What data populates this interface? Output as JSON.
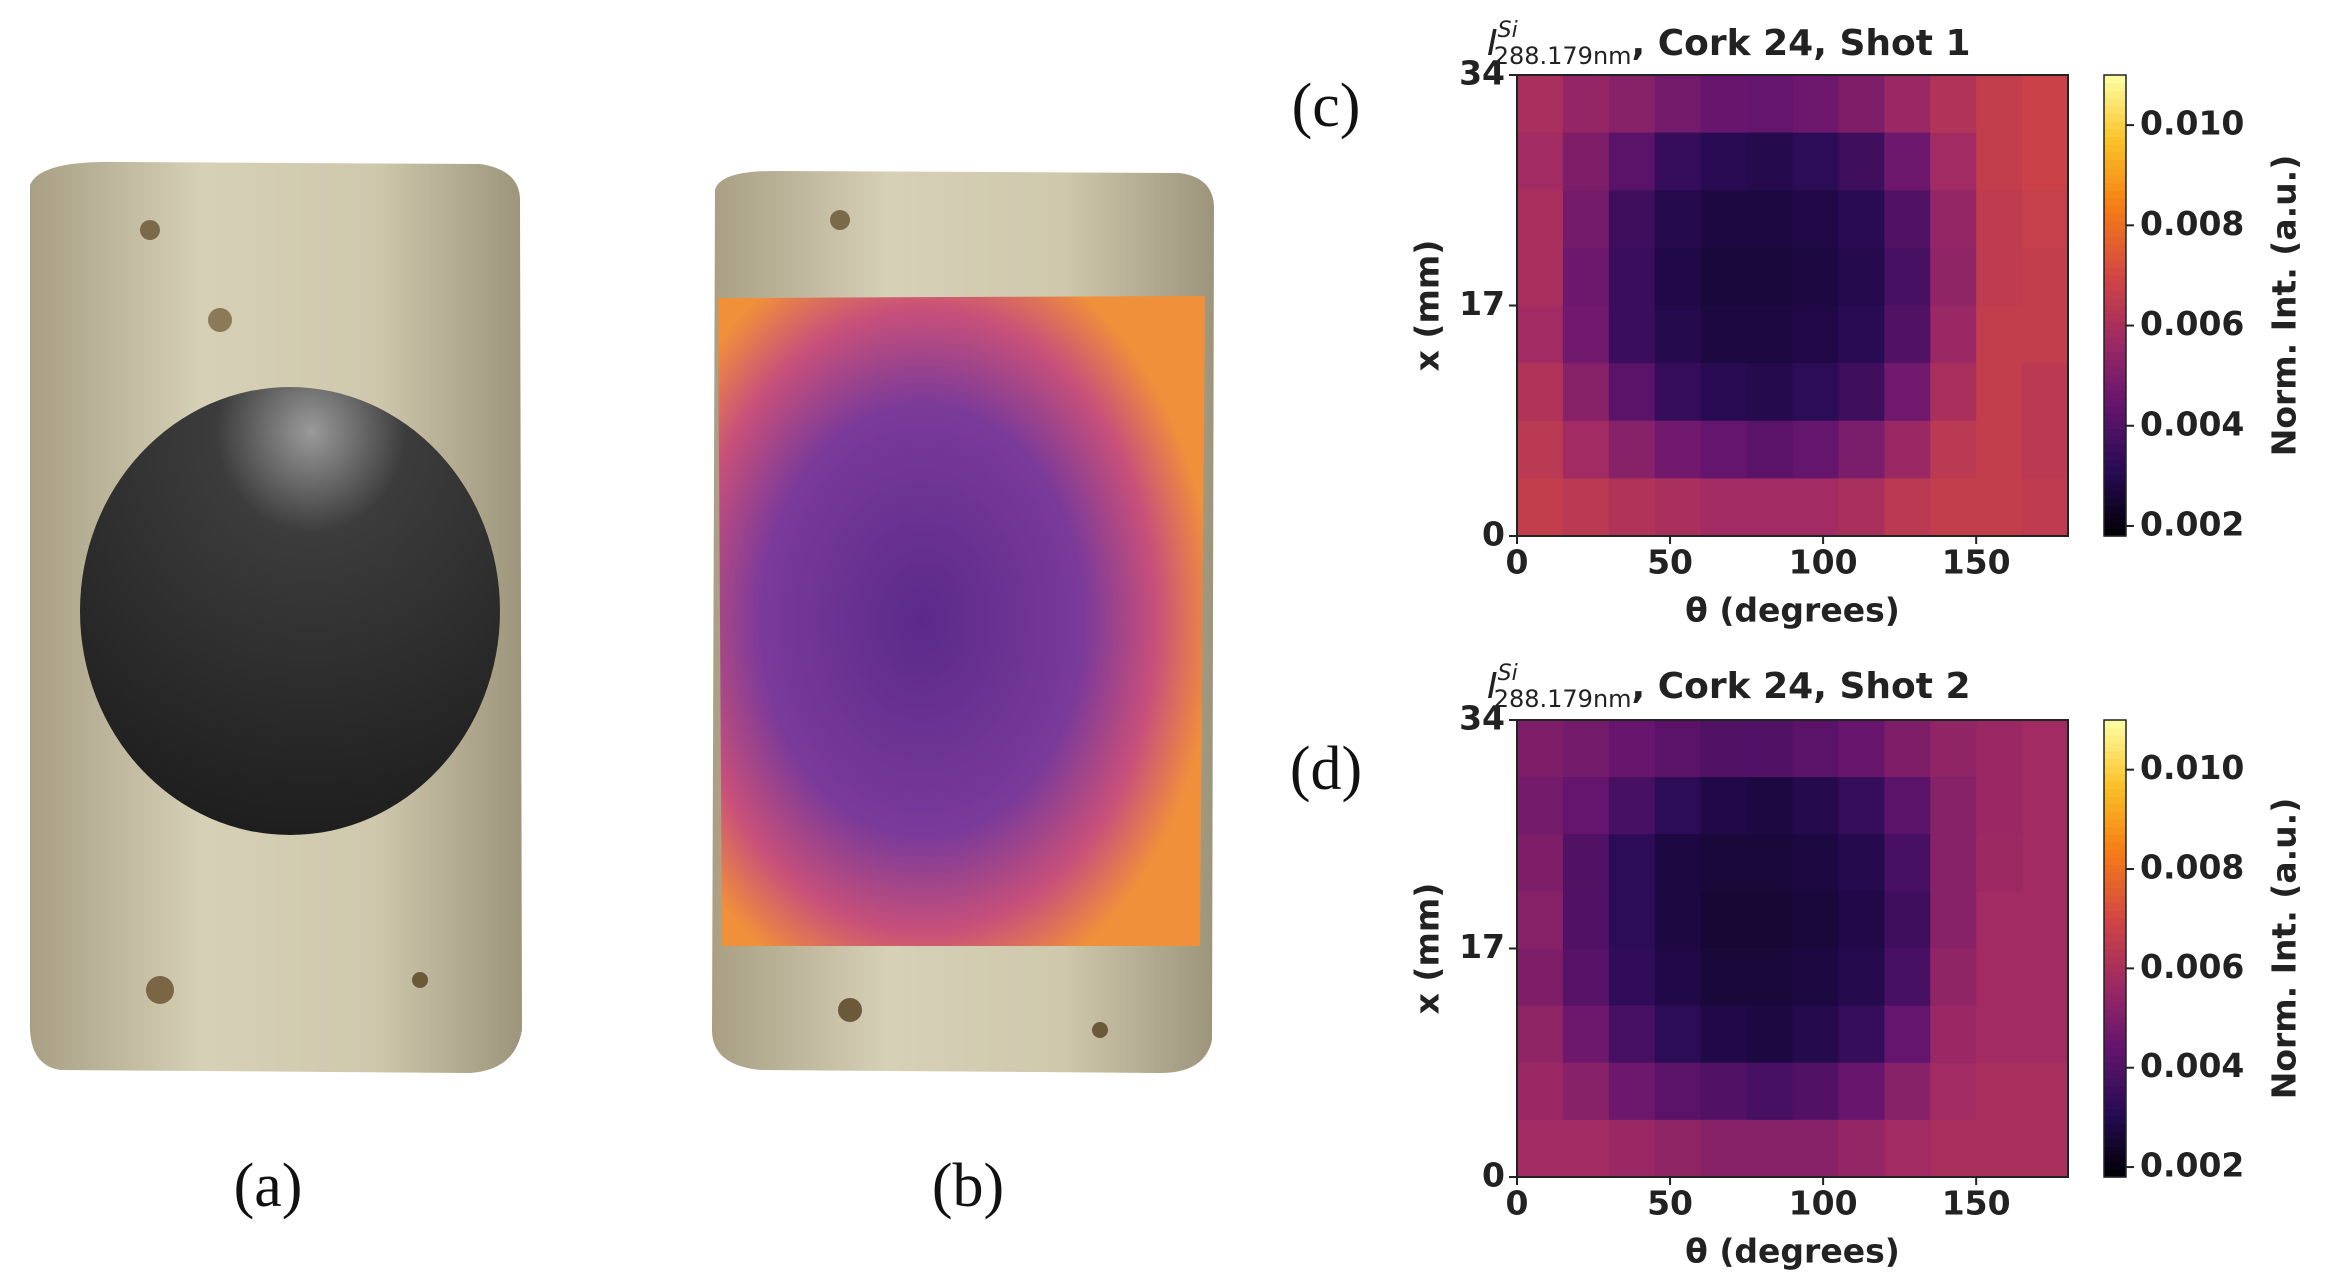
{
  "panels": {
    "a": "(a)",
    "b": "(b)",
    "c": "(c)",
    "d": "(d)"
  },
  "chart_data": [
    {
      "type": "heatmap",
      "title_symbol": "I",
      "title_sup": "Si",
      "title_sub": "288.179nm",
      "title": ", Cork 24, Shot 1",
      "xlabel": "θ (degrees)",
      "ylabel": "x (mm)",
      "colorbar_label": "Norm. Int. (a.u.)",
      "colormap": "inferno",
      "xlim": [
        0,
        180
      ],
      "xticks": [
        0,
        50,
        100,
        150
      ],
      "ylim": [
        0,
        34
      ],
      "yticks": [
        0,
        17,
        34
      ],
      "clim": [
        0.0018,
        0.011
      ],
      "cticks": [
        0.002,
        0.004,
        0.006,
        0.008,
        {
          "value": 0.01,
          "label": "0.010"
        }
      ],
      "values": [
        [
          0.006,
          0.0055,
          0.0052,
          0.0048,
          0.0045,
          0.0044,
          0.0046,
          0.005,
          0.0056,
          0.0062,
          0.0066,
          0.0068
        ],
        [
          0.0058,
          0.005,
          0.0042,
          0.0034,
          0.0031,
          0.003,
          0.0032,
          0.0036,
          0.0046,
          0.0058,
          0.0066,
          0.0068
        ],
        [
          0.006,
          0.0048,
          0.0036,
          0.003,
          0.0028,
          0.0028,
          0.0029,
          0.0031,
          0.004,
          0.0055,
          0.0065,
          0.0067
        ],
        [
          0.006,
          0.0046,
          0.0035,
          0.0029,
          0.0027,
          0.0027,
          0.0028,
          0.003,
          0.0038,
          0.0054,
          0.0065,
          0.0066
        ],
        [
          0.0058,
          0.0047,
          0.0035,
          0.003,
          0.0028,
          0.0028,
          0.0029,
          0.0031,
          0.004,
          0.0056,
          0.0066,
          0.0066
        ],
        [
          0.0062,
          0.0052,
          0.0042,
          0.0034,
          0.0031,
          0.003,
          0.0032,
          0.0036,
          0.0047,
          0.006,
          0.0066,
          0.0064
        ],
        [
          0.0064,
          0.0058,
          0.0052,
          0.0047,
          0.0044,
          0.0042,
          0.0044,
          0.0049,
          0.0056,
          0.0064,
          0.0066,
          0.0064
        ],
        [
          0.0066,
          0.0064,
          0.0062,
          0.006,
          0.0058,
          0.0058,
          0.0058,
          0.006,
          0.0064,
          0.0066,
          0.0066,
          0.0065
        ]
      ]
    },
    {
      "type": "heatmap",
      "title_symbol": "I",
      "title_sup": "Si",
      "title_sub": "288.179nm",
      "title": ", Cork 24, Shot 2",
      "xlabel": "θ (degrees)",
      "ylabel": "x (mm)",
      "colorbar_label": "Norm. Int. (a.u.)",
      "colormap": "inferno",
      "xlim": [
        0,
        180
      ],
      "xticks": [
        0,
        50,
        100,
        150
      ],
      "ylim": [
        0,
        34
      ],
      "yticks": [
        0,
        17,
        34
      ],
      "clim": [
        0.0018,
        0.011
      ],
      "cticks": [
        0.002,
        0.004,
        0.006,
        0.008,
        {
          "value": 0.01,
          "label": "0.010"
        }
      ],
      "values": [
        [
          0.005,
          0.0048,
          0.0045,
          0.0042,
          0.004,
          0.004,
          0.0042,
          0.0045,
          0.005,
          0.0054,
          0.0056,
          0.0058
        ],
        [
          0.0048,
          0.0044,
          0.0038,
          0.0032,
          0.0029,
          0.0028,
          0.003,
          0.0034,
          0.0042,
          0.0052,
          0.0056,
          0.0058
        ],
        [
          0.005,
          0.004,
          0.0032,
          0.0028,
          0.0027,
          0.0027,
          0.0028,
          0.003,
          0.0038,
          0.0052,
          0.0057,
          0.0058
        ],
        [
          0.0052,
          0.004,
          0.0032,
          0.0028,
          0.0026,
          0.0026,
          0.0027,
          0.0029,
          0.0036,
          0.0052,
          0.0058,
          0.0058
        ],
        [
          0.005,
          0.0041,
          0.0033,
          0.0029,
          0.0027,
          0.0027,
          0.0028,
          0.003,
          0.0038,
          0.0054,
          0.0058,
          0.0058
        ],
        [
          0.0054,
          0.0046,
          0.0038,
          0.0032,
          0.0029,
          0.0028,
          0.003,
          0.0034,
          0.0044,
          0.0056,
          0.0058,
          0.0058
        ],
        [
          0.0056,
          0.0052,
          0.0046,
          0.0042,
          0.004,
          0.0038,
          0.004,
          0.0045,
          0.0052,
          0.0058,
          0.006,
          0.006
        ],
        [
          0.0058,
          0.0058,
          0.0056,
          0.0054,
          0.0052,
          0.0052,
          0.0052,
          0.0055,
          0.0058,
          0.006,
          0.006,
          0.006
        ]
      ]
    }
  ]
}
